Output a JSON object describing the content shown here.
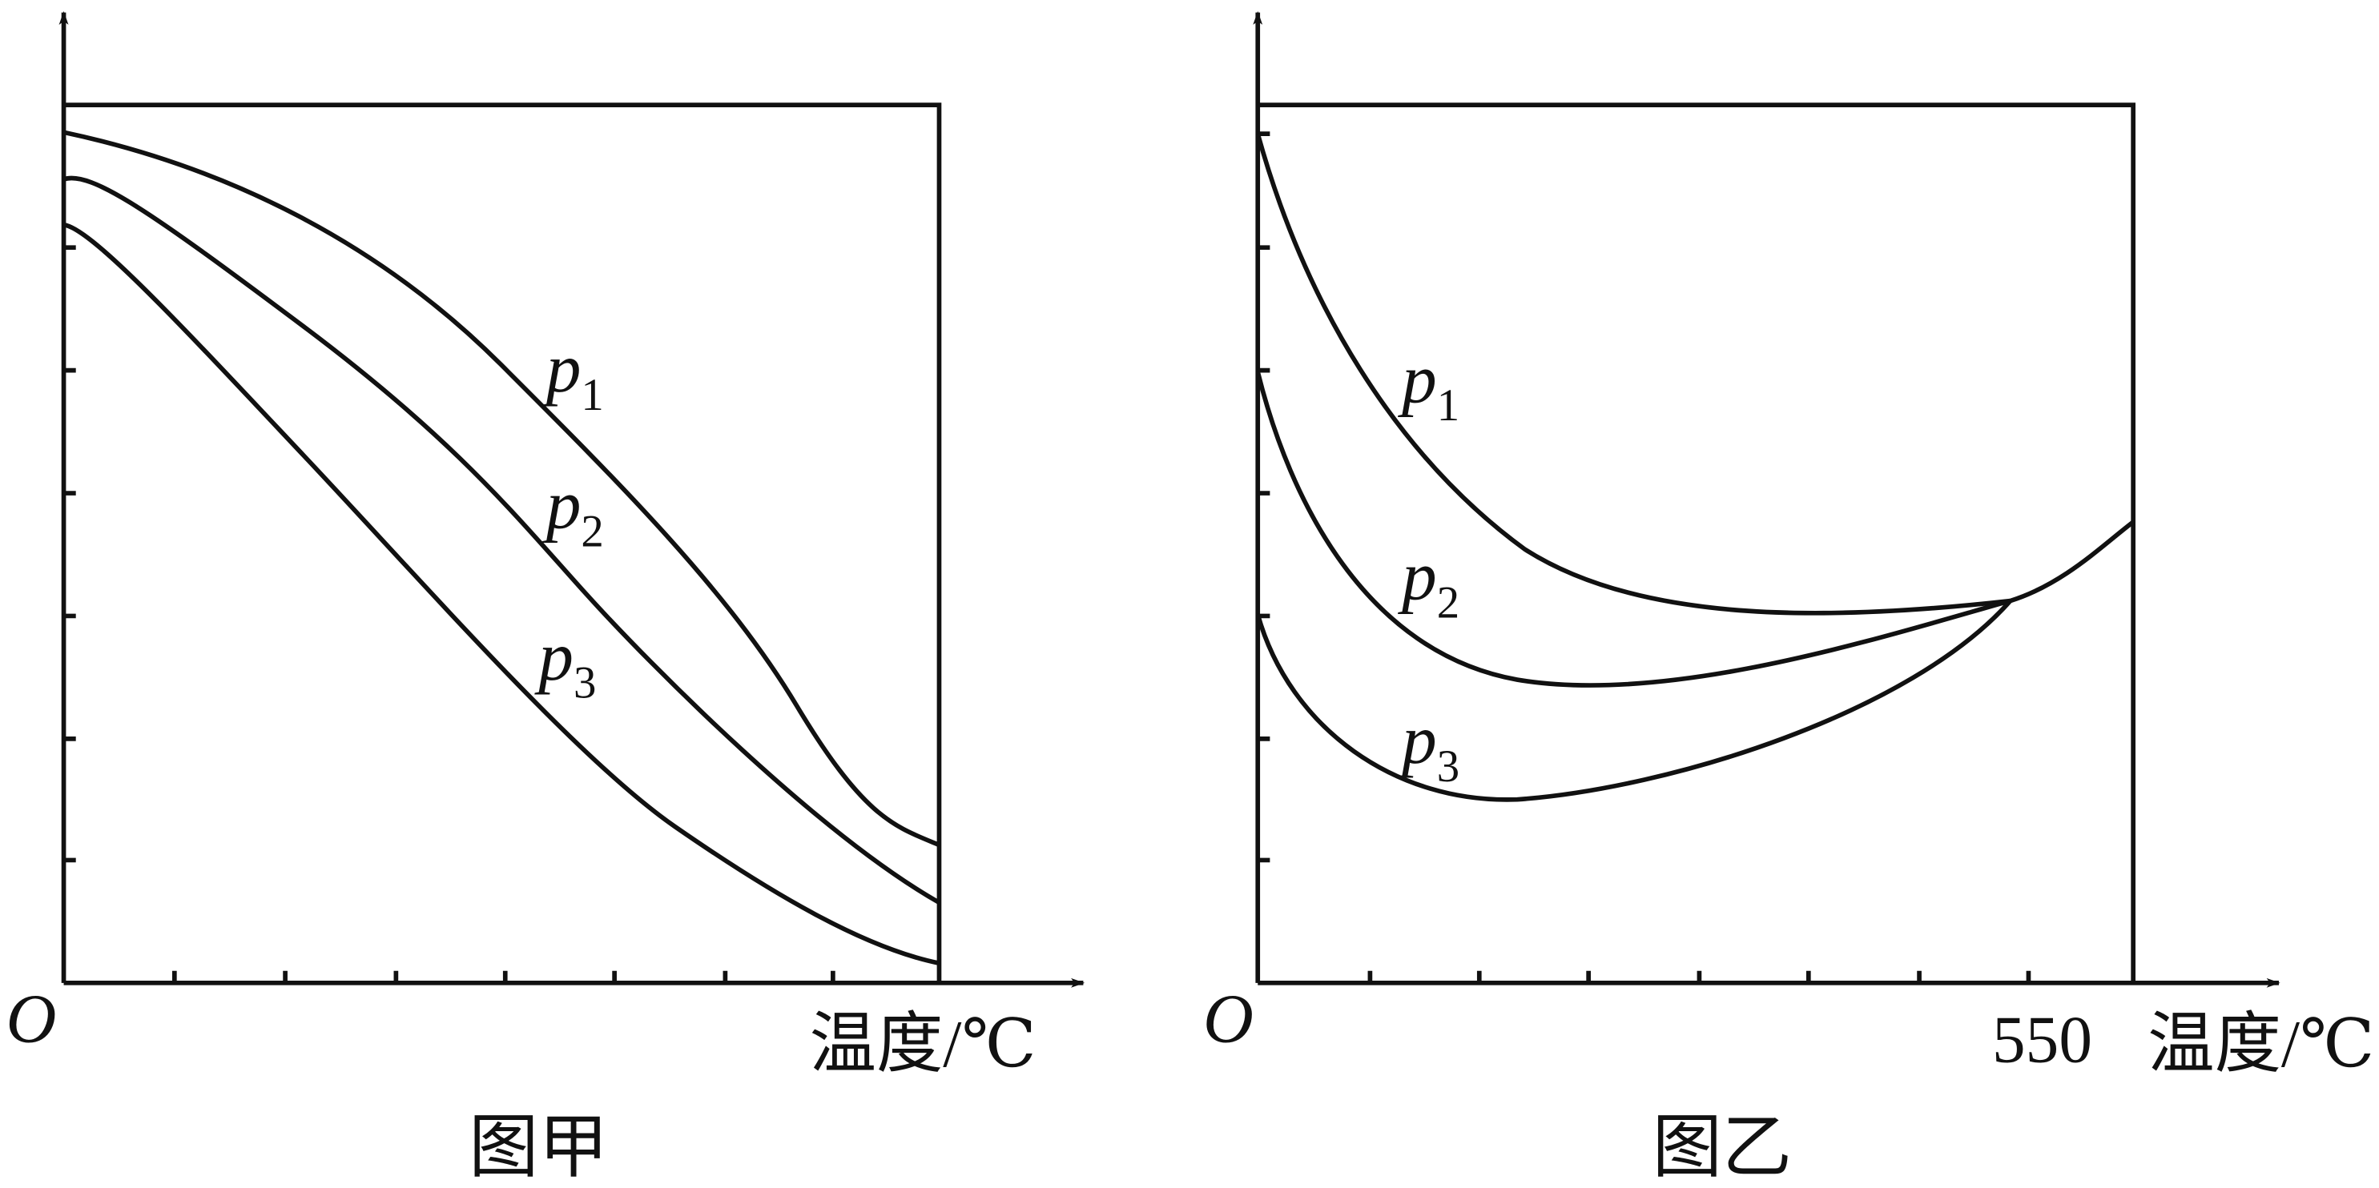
{
  "panels": [
    {
      "caption": "图甲",
      "origin": "O",
      "x_axis_label": "温度/℃",
      "curves": [
        {
          "letter": "p",
          "subscript": "1"
        },
        {
          "letter": "p",
          "subscript": "2"
        },
        {
          "letter": "p",
          "subscript": "3"
        }
      ]
    },
    {
      "caption": "图乙",
      "origin": "O",
      "x_axis_label": "温度/℃",
      "x_tick": "550",
      "curves": [
        {
          "letter": "p",
          "subscript": "1"
        },
        {
          "letter": "p",
          "subscript": "2"
        },
        {
          "letter": "p",
          "subscript": "3"
        }
      ]
    }
  ]
}
